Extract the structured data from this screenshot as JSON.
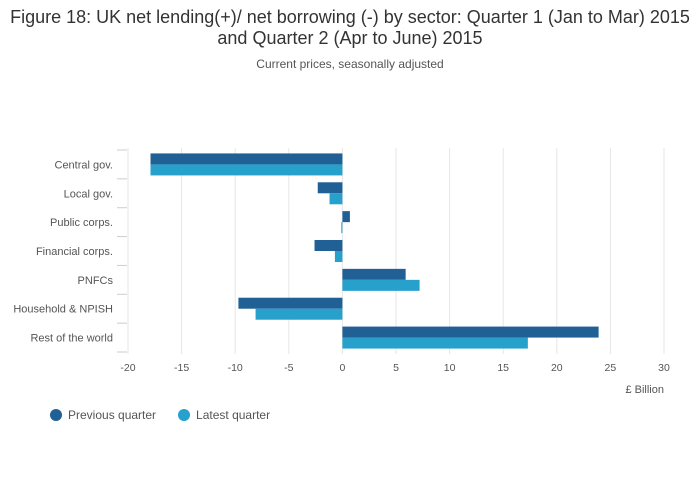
{
  "chart_data": {
    "type": "bar",
    "orientation": "horizontal",
    "title": "Figure 18: UK net lending(+)/ net borrowing (-) by sector: Quarter 1 (Jan to Mar) 2015 and Quarter 2 (Apr to June) 2015",
    "subtitle": "Current prices, seasonally adjusted",
    "xlabel": "£ Billion",
    "ylabel": "",
    "xlim": [
      -20,
      30
    ],
    "xticks": [
      -20,
      -15,
      -10,
      -5,
      0,
      5,
      10,
      15,
      20,
      25,
      30
    ],
    "grid": true,
    "legend_position": "bottom-left",
    "categories": [
      "Central gov.",
      "Local gov.",
      "Public corps.",
      "Financial corps.",
      "PNFCs",
      "Household & NPISH",
      "Rest of the world"
    ],
    "series": [
      {
        "name": "Previous quarter",
        "color": "#206095",
        "values": [
          -17.9,
          -2.3,
          0.7,
          -2.6,
          5.9,
          -9.7,
          23.9
        ]
      },
      {
        "name": "Latest quarter",
        "color": "#27A0CC",
        "values": [
          -17.9,
          -1.2,
          -0.1,
          -0.7,
          7.2,
          -8.1,
          17.3
        ]
      }
    ]
  }
}
